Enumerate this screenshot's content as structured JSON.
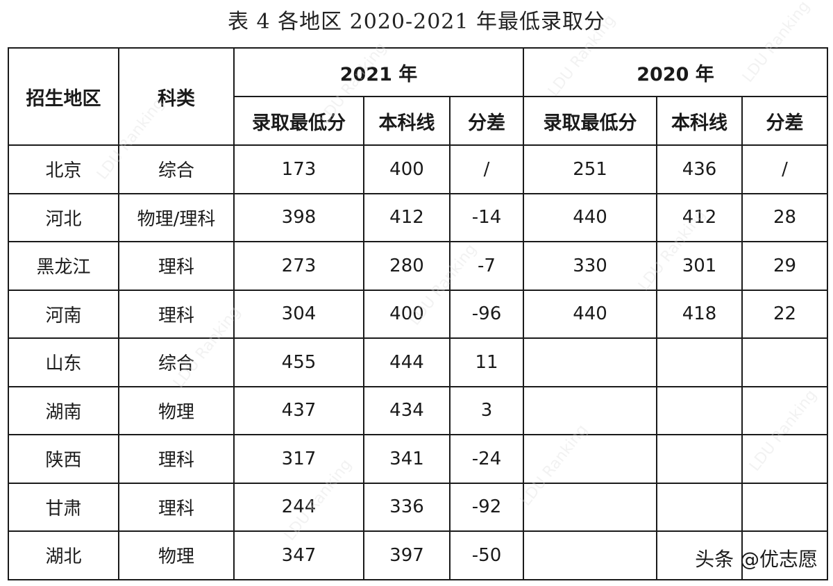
{
  "title": "表 4  各地区 2020-2021 年最低录取分",
  "header": {
    "region": "招生地区",
    "subject": "科类",
    "year_2021": "2021 年",
    "year_2020": "2020 年",
    "min_score": "录取最低分",
    "baseline": "本科线",
    "diff": "分差"
  },
  "rows": [
    {
      "region": "北京",
      "subject": "综合",
      "y2021": {
        "min": "173",
        "line": "400",
        "diff": "/"
      },
      "y2020": {
        "min": "251",
        "line": "436",
        "diff": "/"
      }
    },
    {
      "region": "河北",
      "subject": "物理/理科",
      "y2021": {
        "min": "398",
        "line": "412",
        "diff": "-14"
      },
      "y2020": {
        "min": "440",
        "line": "412",
        "diff": "28"
      }
    },
    {
      "region": "黑龙江",
      "subject": "理科",
      "y2021": {
        "min": "273",
        "line": "280",
        "diff": "-7"
      },
      "y2020": {
        "min": "330",
        "line": "301",
        "diff": "29"
      }
    },
    {
      "region": "河南",
      "subject": "理科",
      "y2021": {
        "min": "304",
        "line": "400",
        "diff": "-96"
      },
      "y2020": {
        "min": "440",
        "line": "418",
        "diff": "22"
      }
    },
    {
      "region": "山东",
      "subject": "综合",
      "y2021": {
        "min": "455",
        "line": "444",
        "diff": "11"
      },
      "y2020": {
        "min": "",
        "line": "",
        "diff": ""
      }
    },
    {
      "region": "湖南",
      "subject": "物理",
      "y2021": {
        "min": "437",
        "line": "434",
        "diff": "3"
      },
      "y2020": {
        "min": "",
        "line": "",
        "diff": ""
      }
    },
    {
      "region": "陕西",
      "subject": "理科",
      "y2021": {
        "min": "317",
        "line": "341",
        "diff": "-24"
      },
      "y2020": {
        "min": "",
        "line": "",
        "diff": ""
      }
    },
    {
      "region": "甘肃",
      "subject": "理科",
      "y2021": {
        "min": "244",
        "line": "336",
        "diff": "-92"
      },
      "y2020": {
        "min": "",
        "line": "",
        "diff": ""
      }
    },
    {
      "region": "湖北",
      "subject": "物理",
      "y2021": {
        "min": "347",
        "line": "397",
        "diff": "-50"
      },
      "y2020": {
        "min": "",
        "line": "",
        "diff": ""
      }
    }
  ],
  "credit": "头条 @优志愿",
  "watermark": {
    "text": "LDU Ranking",
    "color": "#d9d9d9"
  }
}
